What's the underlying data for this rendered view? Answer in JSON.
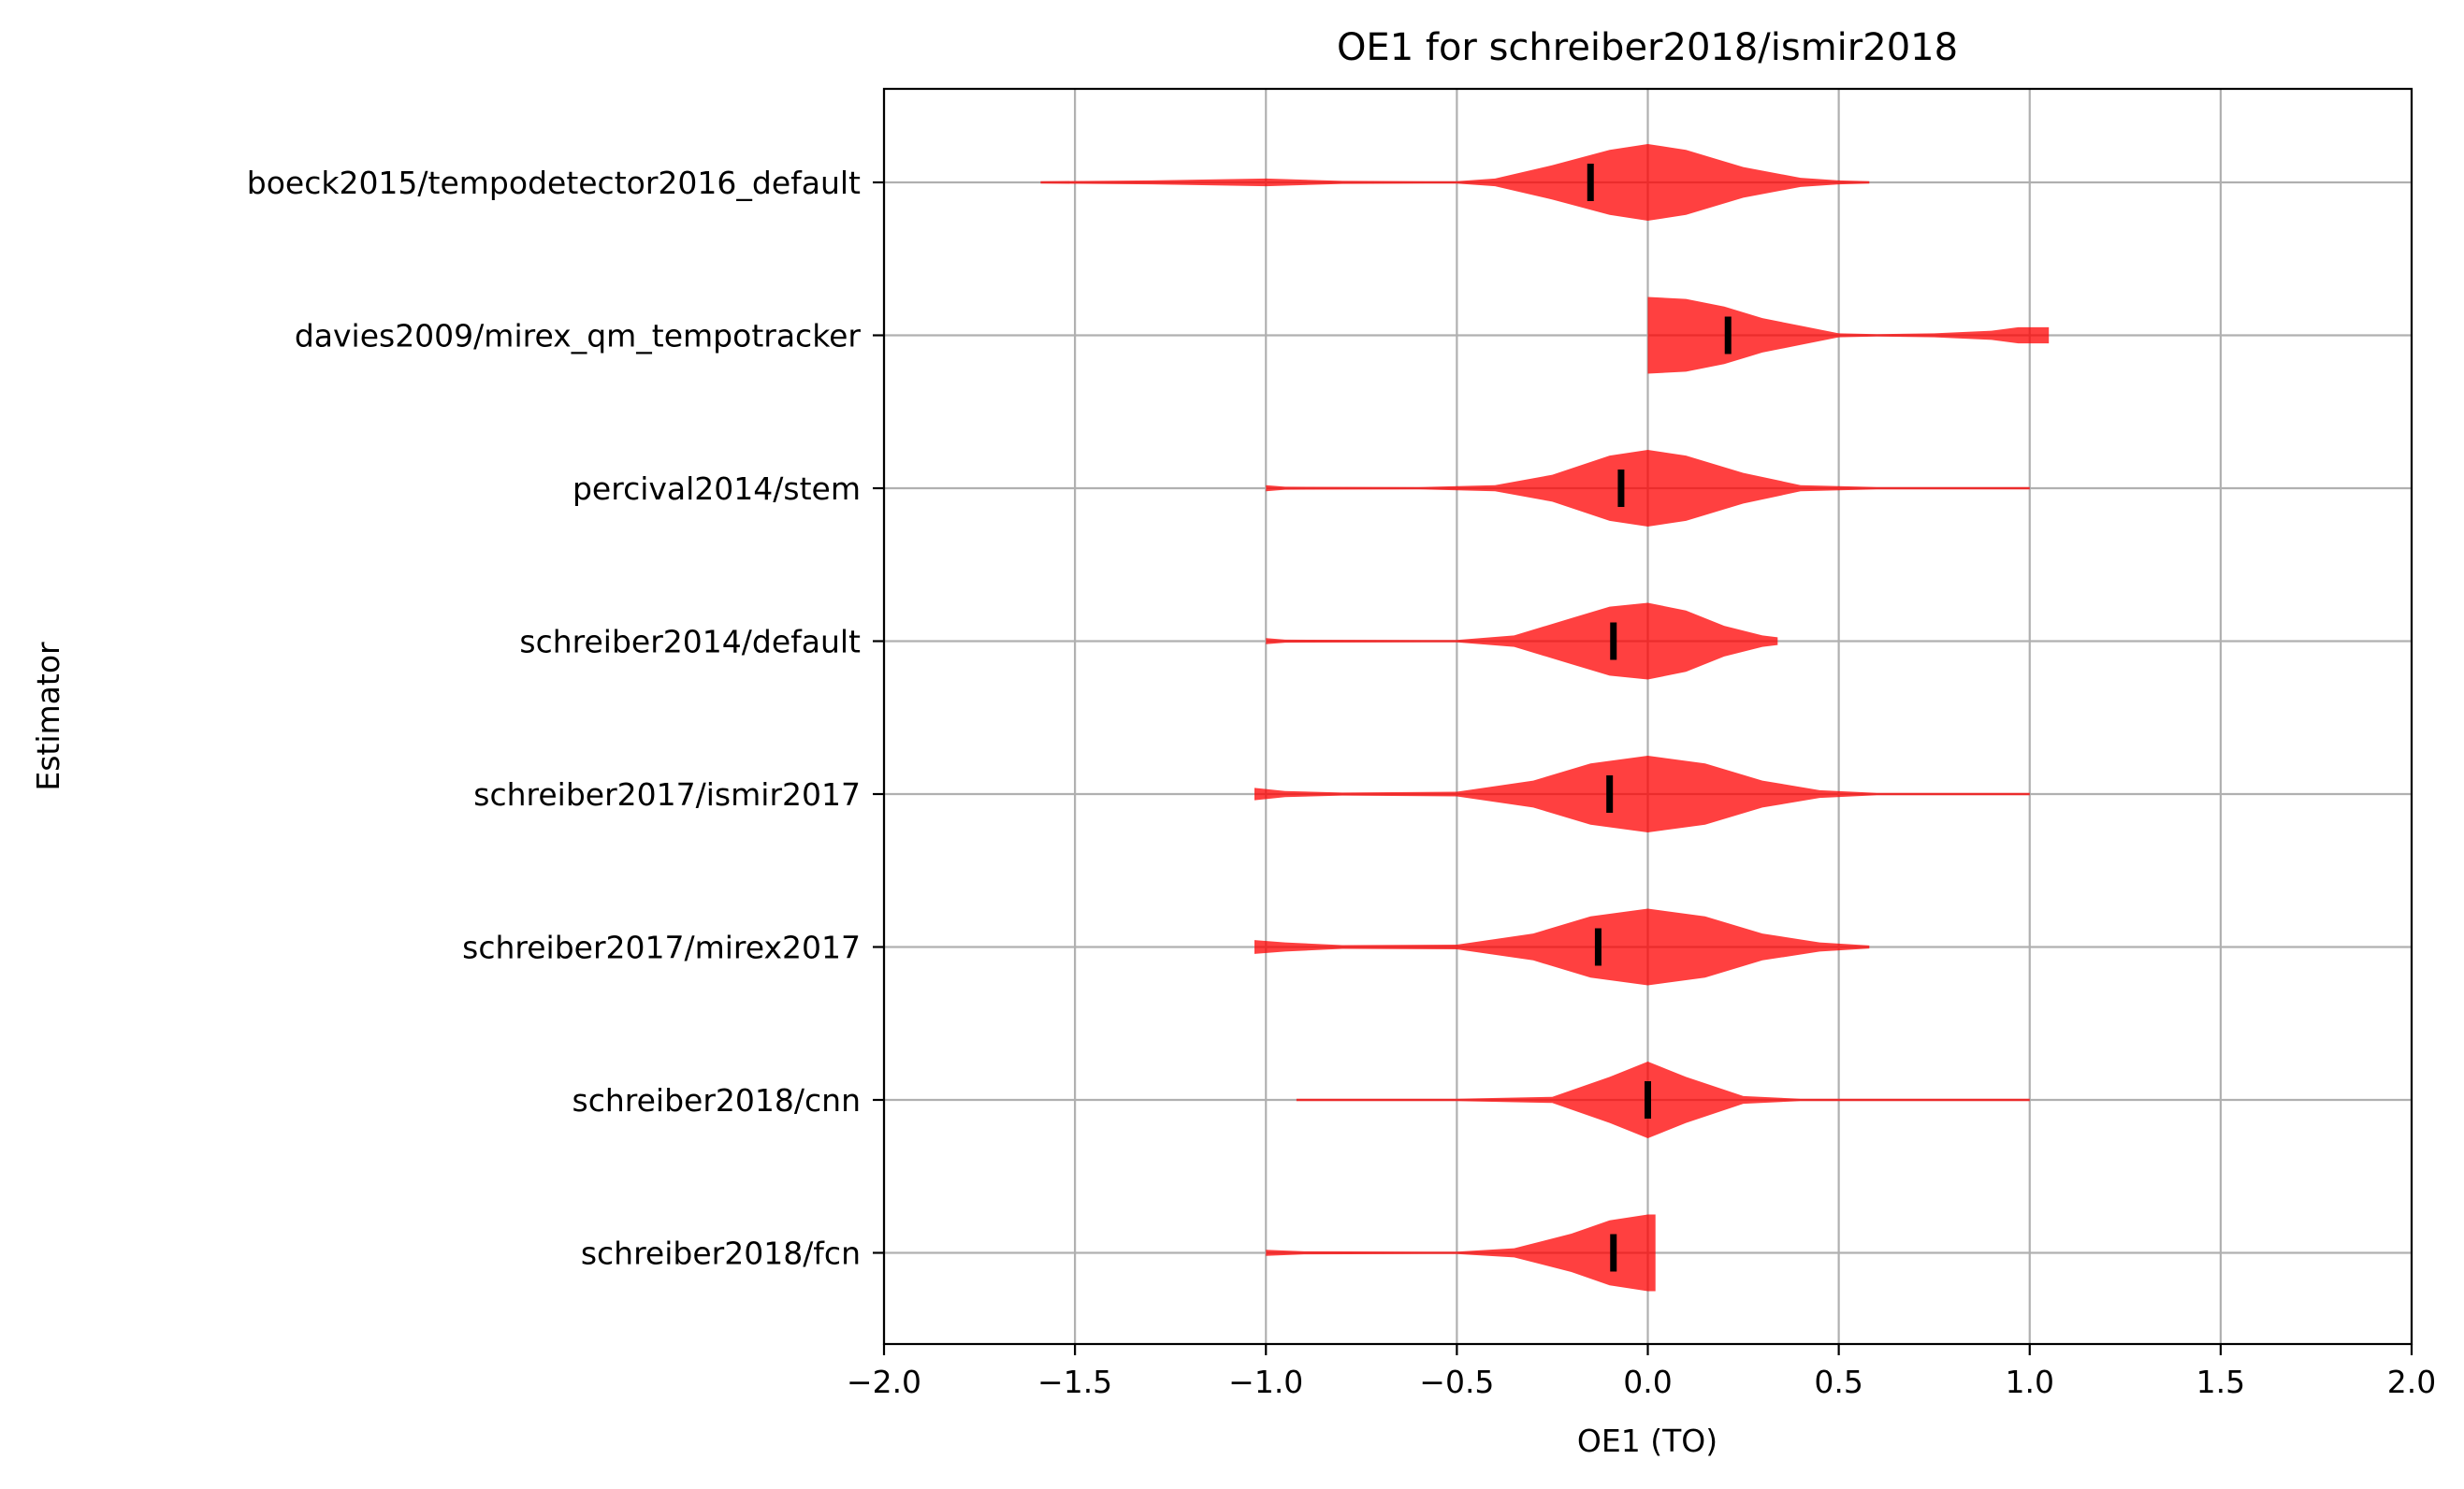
{
  "chart_data": {
    "type": "violin",
    "orientation": "horizontal",
    "title": "OE1 for schreiber2018/ismir2018",
    "xlabel": "OE1 (TO)",
    "ylabel": "Estimator",
    "xlim": [
      -2.0,
      2.0
    ],
    "xticks": [
      -2.0,
      -1.5,
      -1.0,
      -0.5,
      0.0,
      0.5,
      1.0,
      1.5,
      2.0
    ],
    "xtick_labels": [
      "−2.0",
      "−1.5",
      "−1.0",
      "−0.5",
      "0.0",
      "0.5",
      "1.0",
      "1.5",
      "2.0"
    ],
    "grid": true,
    "fill_color": "#ff0000",
    "median_color": "#000000",
    "categories": [
      "boeck2015/tempodetector2016_default",
      "davies2009/mirex_qm_tempotracker",
      "percival2014/stem",
      "schreiber2014/default",
      "schreiber2017/ismir2017",
      "schreiber2017/mirex2017",
      "schreiber2018/cnn",
      "schreiber2018/fcn"
    ],
    "series": [
      {
        "min": -1.59,
        "max": 0.58,
        "median": -0.15,
        "density": [
          [
            -1.59,
            0.003
          ],
          [
            -1.3,
            0.05
          ],
          [
            -1.0,
            0.1
          ],
          [
            -0.8,
            0.04
          ],
          [
            -0.5,
            0.02
          ],
          [
            -0.4,
            0.1
          ],
          [
            -0.25,
            0.45
          ],
          [
            -0.1,
            0.85
          ],
          [
            0.0,
            1.0
          ],
          [
            0.1,
            0.85
          ],
          [
            0.25,
            0.4
          ],
          [
            0.4,
            0.12
          ],
          [
            0.5,
            0.05
          ],
          [
            0.58,
            0.03
          ]
        ]
      },
      {
        "min": 0.0,
        "max": 1.05,
        "median": 0.21,
        "density": [
          [
            0.0,
            1.0
          ],
          [
            0.1,
            0.95
          ],
          [
            0.2,
            0.75
          ],
          [
            0.3,
            0.45
          ],
          [
            0.4,
            0.25
          ],
          [
            0.5,
            0.05
          ],
          [
            0.6,
            0.02
          ],
          [
            0.75,
            0.05
          ],
          [
            0.9,
            0.12
          ],
          [
            0.97,
            0.21
          ],
          [
            1.05,
            0.21
          ]
        ]
      },
      {
        "min": -1.0,
        "max": 1.0,
        "median": -0.07,
        "density": [
          [
            -1.0,
            0.08
          ],
          [
            -0.95,
            0.04
          ],
          [
            -0.6,
            0.03
          ],
          [
            -0.4,
            0.08
          ],
          [
            -0.25,
            0.35
          ],
          [
            -0.1,
            0.85
          ],
          [
            0.0,
            1.0
          ],
          [
            0.1,
            0.85
          ],
          [
            0.25,
            0.4
          ],
          [
            0.4,
            0.08
          ],
          [
            0.6,
            0.01
          ],
          [
            1.0,
            0.003
          ]
        ]
      },
      {
        "min": -1.0,
        "max": 0.34,
        "median": -0.09,
        "density": [
          [
            -1.0,
            0.08
          ],
          [
            -0.95,
            0.04
          ],
          [
            -0.5,
            0.03
          ],
          [
            -0.35,
            0.15
          ],
          [
            -0.2,
            0.6
          ],
          [
            -0.1,
            0.9
          ],
          [
            0.0,
            1.0
          ],
          [
            0.1,
            0.8
          ],
          [
            0.2,
            0.4
          ],
          [
            0.3,
            0.15
          ],
          [
            0.34,
            0.1
          ]
        ]
      },
      {
        "min": -1.03,
        "max": 1.0,
        "median": -0.1,
        "density": [
          [
            -1.03,
            0.16
          ],
          [
            -0.95,
            0.08
          ],
          [
            -0.8,
            0.04
          ],
          [
            -0.5,
            0.06
          ],
          [
            -0.3,
            0.35
          ],
          [
            -0.15,
            0.8
          ],
          [
            0.0,
            1.0
          ],
          [
            0.15,
            0.8
          ],
          [
            0.3,
            0.35
          ],
          [
            0.45,
            0.1
          ],
          [
            0.6,
            0.02
          ],
          [
            1.0,
            0.005
          ]
        ]
      },
      {
        "min": -1.03,
        "max": 0.58,
        "median": -0.13,
        "density": [
          [
            -1.03,
            0.18
          ],
          [
            -0.95,
            0.12
          ],
          [
            -0.8,
            0.05
          ],
          [
            -0.5,
            0.06
          ],
          [
            -0.3,
            0.35
          ],
          [
            -0.15,
            0.8
          ],
          [
            0.0,
            1.0
          ],
          [
            0.15,
            0.8
          ],
          [
            0.3,
            0.35
          ],
          [
            0.45,
            0.12
          ],
          [
            0.58,
            0.04
          ]
        ]
      },
      {
        "min": -0.92,
        "max": 1.0,
        "median": 0.0,
        "density": [
          [
            -0.92,
            0.01
          ],
          [
            -0.5,
            0.01
          ],
          [
            -0.25,
            0.08
          ],
          [
            -0.1,
            0.6
          ],
          [
            0.0,
            1.0
          ],
          [
            0.1,
            0.6
          ],
          [
            0.25,
            0.1
          ],
          [
            0.4,
            0.01
          ],
          [
            0.8,
            0.01
          ],
          [
            1.0,
            0.01
          ]
        ]
      },
      {
        "min": -1.0,
        "max": 0.02,
        "median": -0.09,
        "density": [
          [
            -1.0,
            0.08
          ],
          [
            -0.9,
            0.04
          ],
          [
            -0.5,
            0.02
          ],
          [
            -0.35,
            0.12
          ],
          [
            -0.2,
            0.5
          ],
          [
            -0.1,
            0.85
          ],
          [
            0.0,
            1.0
          ],
          [
            0.02,
            1.0
          ]
        ]
      }
    ]
  }
}
